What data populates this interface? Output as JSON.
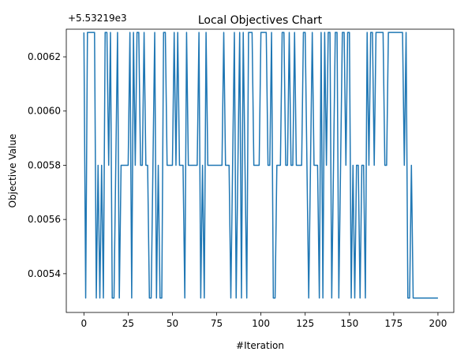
{
  "chart_data": {
    "type": "line",
    "title": "Local Objectives Chart",
    "xlabel": "#Iteration",
    "ylabel": "Objective Value",
    "y_offset_label": "+5.53219e3",
    "xlim": [
      -9.95,
      208.95
    ],
    "ylim": [
      0.005257,
      0.006302
    ],
    "x_ticks": [
      0,
      25,
      50,
      75,
      100,
      125,
      150,
      175,
      200
    ],
    "x_tick_labels": [
      "0",
      "25",
      "50",
      "75",
      "100",
      "125",
      "150",
      "175",
      "200"
    ],
    "y_ticks": [
      0.0054,
      0.0056,
      0.0058,
      0.006,
      0.0062
    ],
    "y_tick_labels": [
      "0.0054",
      "0.0056",
      "0.0058",
      "0.0060",
      "0.0062"
    ],
    "grid": false,
    "series": [
      {
        "color": "#1f77b4",
        "x": [
          0,
          1,
          2,
          3,
          4,
          5,
          6,
          7,
          8,
          9,
          10,
          11,
          12,
          13,
          14,
          15,
          16,
          17,
          18,
          19,
          20,
          21,
          22,
          23,
          24,
          25,
          26,
          27,
          28,
          29,
          30,
          31,
          32,
          33,
          34,
          35,
          36,
          37,
          38,
          39,
          40,
          41,
          42,
          43,
          44,
          45,
          46,
          47,
          48,
          49,
          50,
          51,
          52,
          53,
          54,
          55,
          56,
          57,
          58,
          59,
          60,
          61,
          62,
          63,
          64,
          65,
          66,
          67,
          68,
          69,
          70,
          71,
          72,
          73,
          74,
          75,
          76,
          77,
          78,
          79,
          80,
          81,
          82,
          83,
          84,
          85,
          86,
          87,
          88,
          89,
          90,
          91,
          92,
          93,
          94,
          95,
          96,
          97,
          98,
          99,
          100,
          101,
          102,
          103,
          104,
          105,
          106,
          107,
          108,
          109,
          110,
          111,
          112,
          113,
          114,
          115,
          116,
          117,
          118,
          119,
          120,
          121,
          122,
          123,
          124,
          125,
          126,
          127,
          128,
          129,
          130,
          131,
          132,
          133,
          134,
          135,
          136,
          137,
          138,
          139,
          140,
          141,
          142,
          143,
          144,
          145,
          146,
          147,
          148,
          149,
          150,
          151,
          152,
          153,
          154,
          155,
          156,
          157,
          158,
          159,
          160,
          161,
          162,
          163,
          164,
          165,
          166,
          167,
          168,
          169,
          170,
          171,
          172,
          173,
          174,
          175,
          176,
          177,
          178,
          179,
          180,
          181,
          182,
          183,
          184,
          185,
          186,
          187,
          188,
          189,
          190,
          191,
          192,
          193,
          194,
          195,
          196,
          197,
          198,
          199,
          200
        ],
        "y": [
          0.00629,
          0.00531,
          0.00629,
          0.00629,
          0.00629,
          0.00629,
          0.00629,
          0.00531,
          0.0058,
          0.00531,
          0.0058,
          0.00531,
          0.00629,
          0.00629,
          0.0058,
          0.00629,
          0.00531,
          0.00531,
          0.0058,
          0.00629,
          0.00531,
          0.0058,
          0.0058,
          0.0058,
          0.0058,
          0.0058,
          0.00629,
          0.00531,
          0.00629,
          0.0058,
          0.00629,
          0.00629,
          0.0058,
          0.0058,
          0.00629,
          0.0058,
          0.0058,
          0.00531,
          0.00531,
          0.0058,
          0.00629,
          0.00531,
          0.0058,
          0.00531,
          0.00531,
          0.00629,
          0.00629,
          0.0058,
          0.0058,
          0.0058,
          0.0058,
          0.00629,
          0.0058,
          0.00629,
          0.0058,
          0.0058,
          0.0058,
          0.00531,
          0.00629,
          0.0058,
          0.0058,
          0.0058,
          0.0058,
          0.0058,
          0.0058,
          0.00629,
          0.00531,
          0.0058,
          0.00531,
          0.00629,
          0.0058,
          0.0058,
          0.0058,
          0.0058,
          0.0058,
          0.0058,
          0.0058,
          0.0058,
          0.0058,
          0.00629,
          0.0058,
          0.0058,
          0.0058,
          0.00531,
          0.0058,
          0.00629,
          0.00531,
          0.0058,
          0.00629,
          0.00531,
          0.00629,
          0.0058,
          0.00531,
          0.00629,
          0.00629,
          0.00629,
          0.0058,
          0.0058,
          0.0058,
          0.0058,
          0.00629,
          0.00629,
          0.00629,
          0.00629,
          0.0058,
          0.0058,
          0.00629,
          0.00531,
          0.00531,
          0.0058,
          0.0058,
          0.0058,
          0.00629,
          0.00629,
          0.0058,
          0.0058,
          0.00629,
          0.0058,
          0.0058,
          0.00629,
          0.0058,
          0.0058,
          0.0058,
          0.0058,
          0.00629,
          0.00629,
          0.0058,
          0.00531,
          0.0058,
          0.00629,
          0.0058,
          0.0058,
          0.0058,
          0.00531,
          0.00629,
          0.00531,
          0.00629,
          0.0058,
          0.00629,
          0.00629,
          0.00531,
          0.0058,
          0.00629,
          0.00629,
          0.00531,
          0.0058,
          0.00629,
          0.00629,
          0.0058,
          0.00629,
          0.00629,
          0.00531,
          0.0058,
          0.00531,
          0.0058,
          0.0058,
          0.00531,
          0.0058,
          0.0058,
          0.00531,
          0.00629,
          0.0058,
          0.00629,
          0.00629,
          0.0058,
          0.00629,
          0.00629,
          0.00629,
          0.00629,
          0.00629,
          0.0058,
          0.0058,
          0.00629,
          0.00629,
          0.00629,
          0.00629,
          0.00629,
          0.00629,
          0.00629,
          0.00629,
          0.00629,
          0.0058,
          0.00629,
          0.00531,
          0.00531,
          0.0058,
          0.00531,
          0.00531,
          0.00531,
          0.00531,
          0.00531,
          0.00531,
          0.00531,
          0.00531,
          0.00531,
          0.00531,
          0.00531,
          0.00531,
          0.00531,
          0.00531,
          0.00531
        ]
      }
    ]
  }
}
